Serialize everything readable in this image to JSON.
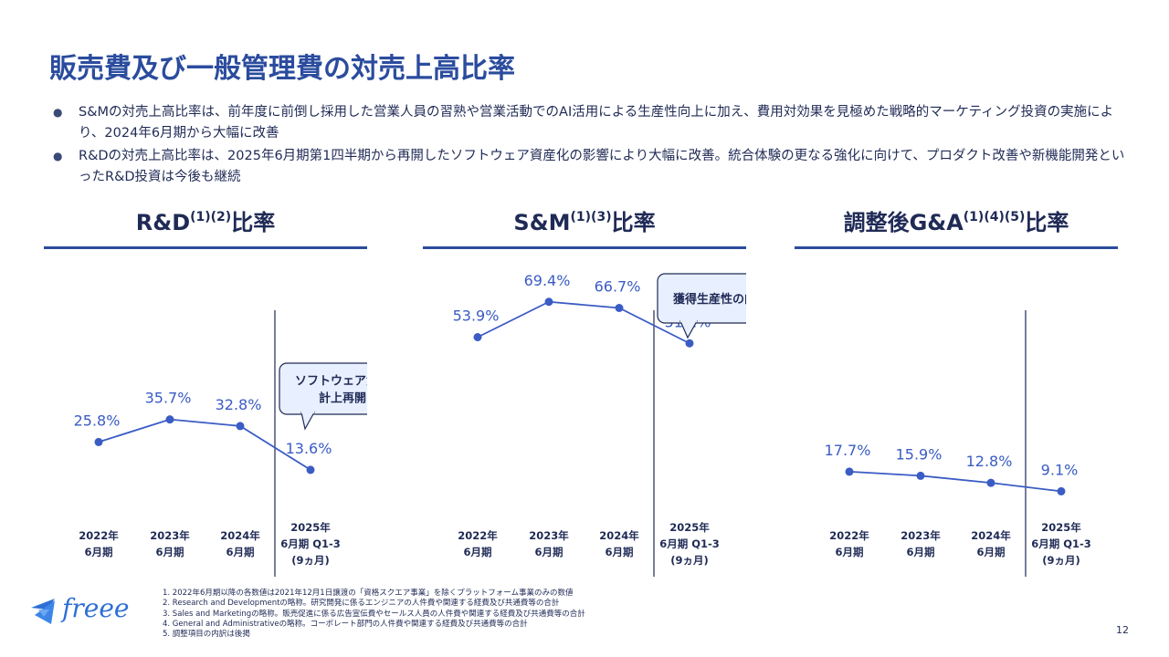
{
  "page": {
    "title": "販売費及び一般管理費の対売上高比率",
    "bullets": [
      "S&Mの対売上高比率は、前年度に前倒し採用した営業人員の習熟や営業活動でのAI活用による生産性向上に加え、費用対効果を見極めた戦略的マーケティング投資の実施により、2024年6月期から大幅に改善",
      "R&Dの対売上高比率は、2025年6月期第1四半期から再開したソフトウェア資産化の影響により大幅に改善。統合体験の更なる強化に向けて、プロダクト改善や新機能開発といったR&D投資は今後も継続"
    ],
    "footnotes": [
      "1.  2022年6月期以降の各数値は2021年12月1日譲渡の「資格スクエア事業」を除くプラットフォーム事業のみの数値",
      "2.  Research and Developmentの略称。研究開発に係るエンジニアの人件費や関連する経費及び共通費等の合計",
      "3.  Sales and Marketingの略称。販売促進に係る広告宣伝費やセールス人員の人件費や関連する経費及び共通費等の合計",
      "4.  General and Administrativeの略称。コーポレート部門の人件費や関連する経費及び共通費等の合計",
      "5.  調整項目の内訳は後掲"
    ],
    "logo_text": "freee",
    "page_number": "12",
    "accent_color": "#2b4c9e"
  },
  "chart_data": [
    {
      "type": "line",
      "title_main": "R&D",
      "title_sup": "(1)(2)",
      "title_suffix": "比率",
      "categories": [
        [
          "2022年",
          "6月期"
        ],
        [
          "2023年",
          "6月期"
        ],
        [
          "2024年",
          "6月期"
        ],
        [
          "2025年",
          "6月期 Q1-3",
          "(9ヵ月)"
        ]
      ],
      "values": [
        25.8,
        35.7,
        32.8,
        13.6
      ],
      "labels": [
        "25.8%",
        "35.7%",
        "32.8%",
        "13.6%"
      ],
      "callout": [
        "ソフトウェア資産",
        "計上再開"
      ],
      "unit": "%"
    },
    {
      "type": "line",
      "title_main": "S&M",
      "title_sup": "(1)(3)",
      "title_suffix": "比率",
      "categories": [
        [
          "2022年",
          "6月期"
        ],
        [
          "2023年",
          "6月期"
        ],
        [
          "2024年",
          "6月期"
        ],
        [
          "2025年",
          "6月期 Q1-3",
          "(9ヵ月)"
        ]
      ],
      "values": [
        53.9,
        69.4,
        66.7,
        51.2
      ],
      "labels": [
        "53.9%",
        "69.4%",
        "66.7%",
        "51.2%"
      ],
      "callout": [
        "獲得生産性の向上"
      ],
      "unit": "%"
    },
    {
      "type": "line",
      "title_main": "調整後G&A",
      "title_sup": "(1)(4)(5)",
      "title_suffix": "比率",
      "categories": [
        [
          "2022年",
          "6月期"
        ],
        [
          "2023年",
          "6月期"
        ],
        [
          "2024年",
          "6月期"
        ],
        [
          "2025年",
          "6月期 Q1-3",
          "(9ヵ月)"
        ]
      ],
      "values": [
        17.7,
        15.9,
        12.8,
        9.1
      ],
      "labels": [
        "17.7%",
        "15.9%",
        "12.8%",
        "9.1%"
      ],
      "callout": [],
      "unit": "%"
    }
  ]
}
